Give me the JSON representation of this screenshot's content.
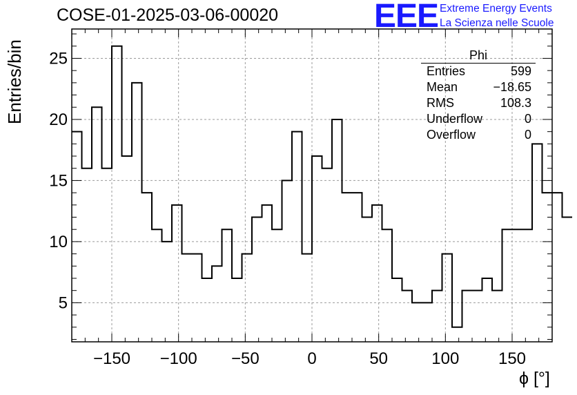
{
  "header": {
    "title": "COSE-01-2025-03-06-00020",
    "logo_text": "EEE",
    "logo_line1": "Extreme Energy Events",
    "logo_line2": "La Scienza nelle Scuole"
  },
  "stats_box": {
    "title": "Phi",
    "rows": [
      {
        "label": "Entries",
        "value": "599"
      },
      {
        "label": "Mean",
        "value": "−18.65"
      },
      {
        "label": "RMS",
        "value": "108.3"
      },
      {
        "label": "Underflow",
        "value": "0"
      },
      {
        "label": "Overflow",
        "value": "0"
      }
    ]
  },
  "chart_data": {
    "type": "bar",
    "title": "COSE-01-2025-03-06-00020",
    "xlabel": "ϕ [°]",
    "ylabel": "Entries/bin",
    "xlim": [
      -180,
      180
    ],
    "ylim": [
      1.8,
      27.4
    ],
    "bin_width": 7.5,
    "x_ticks": [
      -150,
      -100,
      -50,
      0,
      50,
      100,
      150
    ],
    "x_tick_labels": [
      "−150",
      "−100",
      "−50",
      "0",
      "50",
      "100",
      "150"
    ],
    "y_ticks": [
      5,
      10,
      15,
      20,
      25
    ],
    "y_tick_labels": [
      "5",
      "10",
      "15",
      "20",
      "25"
    ],
    "grid": true,
    "legend": "top-right",
    "values": [
      19,
      16,
      21,
      16,
      26,
      17,
      23,
      14,
      11,
      10,
      13,
      9,
      9,
      7,
      8,
      11,
      7,
      9,
      12,
      13,
      11,
      15,
      19,
      9,
      17,
      16,
      20,
      14,
      14,
      12,
      13,
      11,
      7,
      6,
      5,
      5,
      6,
      9,
      3,
      6,
      6,
      7,
      6,
      11,
      11,
      11,
      18,
      14,
      14,
      12
    ],
    "colors": {
      "line": "#000000",
      "grid": "#999999",
      "logo": "#1a1aff"
    }
  }
}
